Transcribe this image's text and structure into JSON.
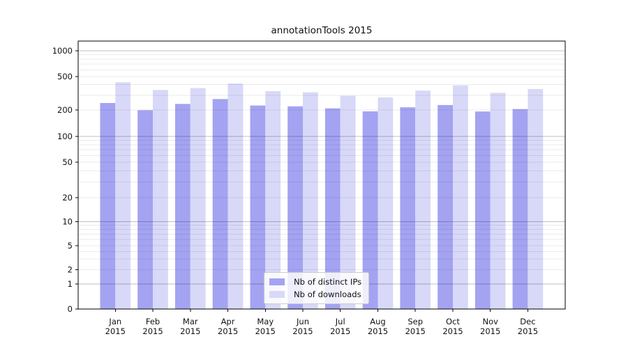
{
  "chart_data": {
    "type": "bar",
    "title": "annotationTools 2015",
    "categories": [
      "Jan",
      "Feb",
      "Mar",
      "Apr",
      "May",
      "Jun",
      "Jul",
      "Aug",
      "Sep",
      "Oct",
      "Nov",
      "Dec"
    ],
    "year": "2015",
    "series": [
      {
        "name": "Nb of distinct IPs",
        "color": "#a3a3f2",
        "values": [
          242,
          199,
          236,
          270,
          226,
          221,
          209,
          193,
          215,
          229,
          192,
          205
        ]
      },
      {
        "name": "Nb of downloads",
        "color": "#d8d8f8",
        "values": [
          427,
          346,
          364,
          413,
          335,
          324,
          295,
          282,
          340,
          392,
          320,
          355
        ]
      }
    ],
    "yticks": [
      0,
      1,
      2,
      5,
      10,
      20,
      50,
      100,
      200,
      500,
      1000
    ],
    "ylim": [
      0,
      1000
    ],
    "yscale": "symlog",
    "grid": true,
    "legend_position": "lower-center"
  }
}
